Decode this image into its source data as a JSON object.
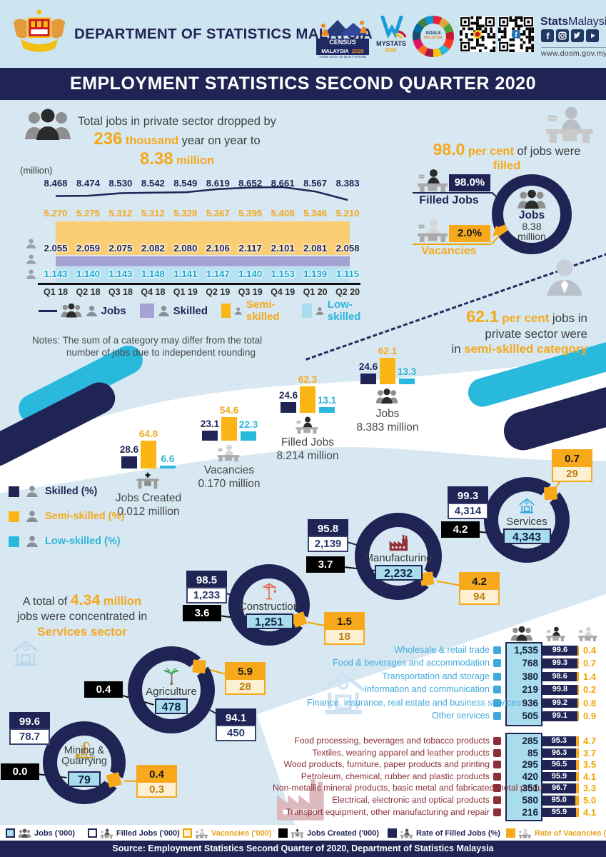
{
  "colors": {
    "navy": "#1f2455",
    "orange": "#f7a81b",
    "orange_text": "#f5a81c",
    "cyan": "#2fb4d9",
    "purple": "#a5a2d4",
    "semi_area": "#fbce75",
    "low_area": "#b8e2f1",
    "bg": "#d7e8f2",
    "light_orange": "#fdf0d2",
    "jobs_box": "#a9dcec",
    "services_text": "#3fa9dc",
    "manufacturing_text": "#8d2f38",
    "grey_text": "#4a4a4a"
  },
  "header": {
    "dept": "DEPARTMENT OF STATISTICS MALAYSIA",
    "census": {
      "line1": "CENSUS",
      "line2": "MALAYSIA",
      "year": "2020",
      "tag": "YOUR DATA IS OUR FUTURE"
    },
    "mystats": {
      "line1": "MYSTATS",
      "line2": "DAY"
    },
    "sdg": {
      "line1": "GOALS",
      "line2": "MALAYSIA"
    },
    "brand": {
      "bold": "Stats",
      "light": "Malaysia"
    },
    "social": [
      "facebook",
      "instagram",
      "twitter",
      "youtube"
    ],
    "website": "www.dosm.gov.my"
  },
  "title_bar": "EMPLOYMENT STATISTICS SECOND QUARTER 2020",
  "headline": {
    "line1": "Total jobs in private sector dropped by",
    "big1": "236",
    "unit1": "thousand",
    "mid": "year on year to",
    "big2": "8.38",
    "unit2": "million"
  },
  "filled_panel": {
    "big": "98.0",
    "bold1": "per cent",
    "plain": "of jobs were",
    "bold2": "filled",
    "filled_badge": "98.0%",
    "filled_label": "Filled Jobs",
    "vacancy_badge": "2.0%",
    "vacancy_label": "Vacancies",
    "center_title": "Jobs",
    "center_value": "8.38",
    "center_unit": "million"
  },
  "semi_note": {
    "big": "62.1",
    "bold1": "per cent",
    "plain1": "jobs in",
    "plain2": "private sector were",
    "plain3": "in",
    "bold2": "semi-skilled category"
  },
  "notes": {
    "line1": "Notes: The sum of a category may differ from the total",
    "line2": "number of jobs due to independent rounding"
  },
  "concentration_note": {
    "plain1": "A total of",
    "big": "4.34",
    "big_unit": "million",
    "plain2": "jobs were concentrated in",
    "bold": "Services sector"
  },
  "skill_legend": [
    {
      "label": "Skilled (%)"
    },
    {
      "label": "Semi-skilled (%)"
    },
    {
      "label": "Low-skilled (%)"
    }
  ],
  "chart_data": [
    {
      "name": "private_sector_jobs_by_quarter",
      "type": "area",
      "unit": "(million)",
      "x": [
        "Q1 18",
        "Q2 18",
        "Q3 18",
        "Q4 18",
        "Q1 19",
        "Q2 19",
        "Q3 19",
        "Q4 19",
        "Q1 20",
        "Q2 20"
      ],
      "series": [
        {
          "name": "Jobs",
          "values": [
            "8.468",
            "8.474",
            "8.530",
            "8.542",
            "8.549",
            "8.619",
            "8.652",
            "8.661",
            "8.567",
            "8.383"
          ]
        },
        {
          "name": "Semi-skilled",
          "values": [
            "5.270",
            "5.275",
            "5.312",
            "5.312",
            "5.328",
            "5.367",
            "5.395",
            "5.408",
            "5.346",
            "5.210"
          ]
        },
        {
          "name": "Skilled",
          "values": [
            "2.055",
            "2.059",
            "2.075",
            "2.082",
            "2.080",
            "2.106",
            "2.117",
            "2.101",
            "2.081",
            "2.058"
          ]
        },
        {
          "name": "Low-skilled",
          "values": [
            "1.143",
            "1.140",
            "1.143",
            "1.148",
            "1.141",
            "1.147",
            "1.140",
            "1.153",
            "1.139",
            "1.115"
          ]
        }
      ],
      "legend": [
        "Jobs",
        "Skilled",
        "Semi-skilled",
        "Low-skilled"
      ]
    },
    {
      "name": "skill_composition_percent",
      "type": "bar",
      "series_order": [
        "Skilled",
        "Semi-skilled",
        "Low-skilled"
      ],
      "groups": [
        {
          "label": "Jobs Created",
          "amount": "0.012 million",
          "values": [
            "28.6",
            "64.8",
            "6.6"
          ],
          "icon": "desk-plus"
        },
        {
          "label": "Vacancies",
          "amount": "0.170 million",
          "values": [
            "23.1",
            "54.6",
            "22.3"
          ],
          "icon": "desk-empty"
        },
        {
          "label": "Filled Jobs",
          "amount": "8.214 million",
          "values": [
            "24.6",
            "62.3",
            "13.1"
          ],
          "icon": "person-desk"
        },
        {
          "label": "Jobs",
          "amount": "8.383 million",
          "values": [
            "24.6",
            "62.1",
            "13.3"
          ],
          "icon": "people"
        }
      ]
    },
    {
      "name": "sectors_jobs_filled_vacancies",
      "type": "donut",
      "units": {
        "values": "'000",
        "rates": "%"
      },
      "sectors": [
        {
          "label": "Services",
          "icon": "bank",
          "jobs": "4,343",
          "rate_filled": "99.3",
          "filled": "4,314",
          "jobs_created": "4.2",
          "rate_vacancies": "0.7",
          "vacancies": "29"
        },
        {
          "label": "Manufacturing",
          "icon": "factory",
          "jobs": "2,232",
          "rate_filled": "95.8",
          "filled": "2,139",
          "jobs_created": "3.7",
          "rate_vacancies": "4.2",
          "vacancies": "94"
        },
        {
          "label": "Construction",
          "icon": "crane",
          "jobs": "1,251",
          "rate_filled": "98.5",
          "filled": "1,233",
          "jobs_created": "3.6",
          "rate_vacancies": "1.5",
          "vacancies": "18"
        },
        {
          "label": "Agriculture",
          "icon": "palm",
          "jobs": "478",
          "rate_filled": "94.1",
          "filled": "450",
          "jobs_created": "0.4",
          "rate_vacancies": "5.9",
          "vacancies": "28"
        },
        {
          "label": "Mining & Quarrying",
          "icon": "rig",
          "jobs": "79",
          "rate_filled": "99.6",
          "filled": "78.7",
          "jobs_created": "0.0",
          "rate_vacancies": "0.4",
          "vacancies": "0.3"
        }
      ]
    },
    {
      "name": "services_subsectors",
      "type": "table",
      "columns": [
        "Jobs ('000)",
        "Rate of Filled Jobs (%)",
        "Rate of Vacancies (%)"
      ],
      "rows": [
        {
          "label": "Wholesale & retail trade",
          "icon": "cart",
          "jobs": "1,535",
          "rate_filled": "99.6",
          "rate_vacancies": "0.4"
        },
        {
          "label": "Food & beverages and accommodation",
          "icon": "food",
          "jobs": "768",
          "rate_filled": "99.3",
          "rate_vacancies": "0.7"
        },
        {
          "label": "Transportation and storage",
          "icon": "truck",
          "jobs": "380",
          "rate_filled": "98.6",
          "rate_vacancies": "1.4"
        },
        {
          "label": "Information and communication",
          "icon": "phone",
          "jobs": "219",
          "rate_filled": "99.8",
          "rate_vacancies": "0.2"
        },
        {
          "label": "Finance, insurance, real estate and business services",
          "icon": "money",
          "jobs": "936",
          "rate_filled": "99.2",
          "rate_vacancies": "0.8"
        },
        {
          "label": "Other services",
          "icon": "share",
          "jobs": "505",
          "rate_filled": "99.1",
          "rate_vacancies": "0.9"
        }
      ]
    },
    {
      "name": "manufacturing_subsectors",
      "type": "table",
      "columns": [
        "Jobs ('000)",
        "Rate of Filled Jobs (%)",
        "Rate of Vacancies (%)"
      ],
      "rows": [
        {
          "label": "Food processing, beverages and tobacco products",
          "icon": "food-processing",
          "jobs": "285",
          "rate_filled": "95.3",
          "rate_vacancies": "4.7"
        },
        {
          "label": "Textiles, wearing apparel and leather products",
          "icon": "shirt",
          "jobs": "85",
          "rate_filled": "96.3",
          "rate_vacancies": "3.7"
        },
        {
          "label": "Wood products, furniture, paper products and printing",
          "icon": "furniture",
          "jobs": "295",
          "rate_filled": "96.5",
          "rate_vacancies": "3.5"
        },
        {
          "label": "Petroleum, chemical, rubber and plastic products",
          "icon": "barrel",
          "jobs": "420",
          "rate_filled": "95.9",
          "rate_vacancies": "4.1"
        },
        {
          "label": "Non-metallic mineral products, basic metal and fabricated metal products",
          "icon": "metal",
          "jobs": "351",
          "rate_filled": "96.7",
          "rate_vacancies": "3.3"
        },
        {
          "label": "Electrical, electronic and optical products",
          "icon": "plug",
          "jobs": "580",
          "rate_filled": "95.0",
          "rate_vacancies": "5.0"
        },
        {
          "label": "Transport equipment, other manufacturing and repair",
          "icon": "tools",
          "jobs": "216",
          "rate_filled": "95.9",
          "rate_vacancies": "4.1"
        }
      ]
    }
  ],
  "bottom_legend": [
    {
      "label": "Jobs ('000)",
      "icon": "people",
      "swatch": "jobs"
    },
    {
      "label": "Filled Jobs ('000)",
      "icon": "person-desk",
      "swatch": "filled"
    },
    {
      "label": "Vacancies ('000)",
      "icon": "desk-empty",
      "swatch": "vacancies"
    },
    {
      "label": "Jobs Created ('000)",
      "icon": "desk-plus",
      "swatch": "created"
    },
    {
      "label": "Rate of Filled Jobs (%)",
      "icon": "person-desk",
      "swatch": "rate_filled"
    },
    {
      "label": "Rate of Vacancies (%)",
      "icon": "desk-empty",
      "swatch": "rate_vacancies"
    }
  ],
  "footer": "Source: Employment Statistics Second Quarter of 2020, Department of Statistics Malaysia"
}
